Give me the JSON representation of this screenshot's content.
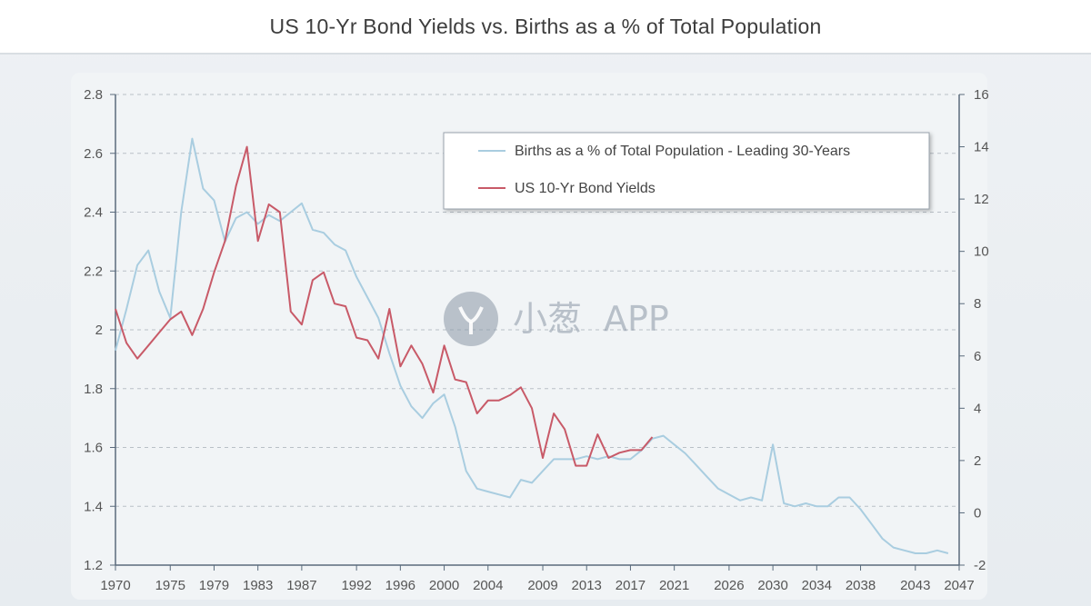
{
  "header": {
    "title": "US 10-Yr Bond Yields vs. Births as a % of Total Population"
  },
  "watermark": {
    "brand": "小葱",
    "suffix": "APP",
    "icon": "leaf-logo-icon"
  },
  "colors": {
    "births": "#a9cde0",
    "bonds": "#c85a68",
    "grid": "#b9c0c7",
    "axis": "#5a6b7c"
  },
  "chart_data": {
    "type": "line",
    "title": "US 10-Yr Bond Yields vs. Births as a % of Total Population",
    "xlabel": "",
    "ylabel": "",
    "y2label": "",
    "x_ticks": [
      "1970",
      "1975",
      "1979",
      "1983",
      "1987",
      "1992",
      "1996",
      "2000",
      "2004",
      "2009",
      "2013",
      "2017",
      "2021",
      "2026",
      "2030",
      "2034",
      "2038",
      "2043",
      "2047"
    ],
    "xlim": [
      1970,
      2047
    ],
    "ylim": [
      1.2,
      2.8
    ],
    "y_ticks": [
      "2.8",
      "2.6",
      "2.4",
      "2.2",
      "2",
      "1.8",
      "1.6",
      "1.4",
      "1.2"
    ],
    "y2lim": [
      -2,
      16
    ],
    "y2_ticks": [
      "16",
      "14",
      "12",
      "10",
      "8",
      "6",
      "4",
      "2",
      "0",
      "-2"
    ],
    "grid": "horizontal dashed",
    "legend_position": "top-right",
    "series": [
      {
        "name": "Births as a % of Total Population - Leading 30-Years",
        "axis": "left",
        "x": [
          1970,
          1971,
          1972,
          1973,
          1974,
          1975,
          1976,
          1977,
          1978,
          1979,
          1980,
          1981,
          1982,
          1983,
          1984,
          1985,
          1986,
          1987,
          1988,
          1989,
          1990,
          1991,
          1992,
          1993,
          1994,
          1995,
          1996,
          1997,
          1998,
          1999,
          2000,
          2001,
          2002,
          2003,
          2004,
          2005,
          2006,
          2007,
          2008,
          2009,
          2010,
          2011,
          2012,
          2013,
          2014,
          2015,
          2016,
          2017,
          2018,
          2019,
          2020,
          2021,
          2022,
          2023,
          2024,
          2025,
          2026,
          2027,
          2028,
          2029,
          2030,
          2031,
          2032,
          2033,
          2034,
          2035,
          2036,
          2037,
          2038,
          2039,
          2040,
          2041,
          2042,
          2043,
          2044,
          2045,
          2046
        ],
        "y": [
          1.93,
          2.07,
          2.22,
          2.27,
          2.13,
          2.04,
          2.4,
          2.65,
          2.48,
          2.44,
          2.3,
          2.38,
          2.4,
          2.36,
          2.39,
          2.37,
          2.4,
          2.43,
          2.34,
          2.33,
          2.29,
          2.27,
          2.18,
          2.11,
          2.04,
          1.92,
          1.81,
          1.74,
          1.7,
          1.75,
          1.78,
          1.67,
          1.52,
          1.46,
          1.45,
          1.44,
          1.43,
          1.49,
          1.48,
          1.52,
          1.56,
          1.56,
          1.56,
          1.57,
          1.56,
          1.57,
          1.56,
          1.56,
          1.59,
          1.63,
          1.64,
          1.61,
          1.58,
          1.54,
          1.5,
          1.46,
          1.44,
          1.42,
          1.43,
          1.42,
          1.61,
          1.41,
          1.4,
          1.41,
          1.4,
          1.4,
          1.43,
          1.43,
          1.39,
          1.34,
          1.29,
          1.26,
          1.25,
          1.24,
          1.24,
          1.25,
          1.24
        ]
      },
      {
        "name": "US 10-Yr Bond Yields",
        "axis": "right",
        "x": [
          1970,
          1971,
          1972,
          1973,
          1974,
          1975,
          1976,
          1977,
          1978,
          1979,
          1980,
          1981,
          1982,
          1983,
          1984,
          1985,
          1986,
          1987,
          1988,
          1989,
          1990,
          1991,
          1992,
          1993,
          1994,
          1995,
          1996,
          1997,
          1998,
          1999,
          2000,
          2001,
          2002,
          2003,
          2004,
          2005,
          2006,
          2007,
          2008,
          2009,
          2010,
          2011,
          2012,
          2013,
          2014,
          2015,
          2016,
          2017,
          2018,
          2019
        ],
        "y": [
          7.8,
          6.5,
          5.9,
          6.4,
          6.9,
          7.4,
          7.7,
          6.8,
          7.8,
          9.2,
          10.4,
          12.5,
          14.0,
          10.4,
          11.8,
          11.5,
          7.7,
          7.2,
          8.9,
          9.2,
          8.0,
          7.9,
          6.7,
          6.6,
          5.9,
          7.8,
          5.6,
          6.4,
          5.7,
          4.6,
          6.4,
          5.1,
          5.0,
          3.8,
          4.3,
          4.3,
          4.5,
          4.8,
          4.0,
          2.1,
          3.8,
          3.2,
          1.8,
          1.8,
          3.0,
          2.1,
          2.3,
          2.4,
          2.4,
          2.9
        ]
      }
    ]
  }
}
